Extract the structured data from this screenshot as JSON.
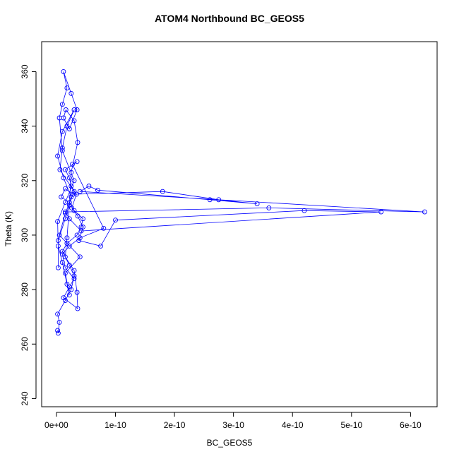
{
  "chart_data": {
    "type": "scatter",
    "title": "ATOM4 Northbound BC_GEOS5",
    "xlabel": "BC_GEOS5",
    "ylabel": "Theta (K)",
    "xlim": [
      -2.5e-11,
      6.45e-10
    ],
    "ylim": [
      237,
      371
    ],
    "x_ticks": [
      0,
      1e-10,
      2e-10,
      3e-10,
      4e-10,
      5e-10,
      6e-10
    ],
    "x_tick_labels": [
      "0e+00",
      "1e-10",
      "2e-10",
      "3e-10",
      "4e-10",
      "5e-10",
      "6e-10"
    ],
    "y_ticks": [
      240,
      260,
      280,
      300,
      320,
      340,
      360
    ],
    "y_tick_labels": [
      "240",
      "260",
      "280",
      "300",
      "320",
      "340",
      "360"
    ],
    "grid": false,
    "marker": "open-circle",
    "connected": true,
    "series_color": "#0000ff",
    "series": [
      {
        "x": [
          2e-12,
          3e-12,
          5e-12,
          2e-12,
          1.5e-11,
          2.5e-11,
          3e-11,
          2.2e-11,
          1e-11,
          1.8e-11,
          3.5e-11,
          4.2e-11,
          4.5e-11,
          3e-11,
          2.2e-11,
          8e-12,
          1.5e-11,
          2.8e-11,
          1.8e-10,
          2.75e-10,
          3.4e-10,
          2.6e-10,
          7e-11,
          5.5e-11,
          4e-11,
          6.24e-10,
          3.6e-10,
          1.5e-11,
          2.2e-11,
          4.2e-11,
          5.5e-10,
          4.2e-10,
          1e-10,
          7.5e-11,
          3.8e-11,
          4.5e-11,
          3.6e-11,
          2.6e-11,
          3.4e-11,
          2.5e-11,
          2.2e-11,
          1.5e-11,
          3.5e-11,
          2.7e-11,
          8e-11,
          4e-11,
          2.2e-11,
          1e-11,
          1.5e-11,
          3e-11,
          2.2e-11,
          1.2e-11,
          3.6e-11,
          3.5e-11,
          3e-11,
          1.5e-11,
          1.8e-11,
          2.2e-11,
          2.5e-11,
          3.6e-11,
          3e-11,
          1.6e-11,
          1.2e-11,
          2.2e-11,
          3.5e-11,
          2.5e-11,
          1.2e-11,
          1.8e-11,
          1e-11,
          5e-12,
          1e-11,
          3e-11,
          1.5e-11,
          2e-12,
          3e-12,
          1e-11,
          1.8e-11,
          2.2e-11,
          1.5e-11,
          4e-11,
          5e-12,
          1.5e-11,
          3e-11,
          6e-12,
          1e-11,
          1.8e-11,
          3e-11,
          1e-11,
          2e-12,
          1.2e-11,
          2.5e-11,
          1.5e-11,
          3e-12,
          3e-12
        ],
        "y": [
          265,
          264,
          268,
          271,
          276,
          280,
          285,
          289,
          294,
          297,
          300,
          303,
          306,
          309,
          312,
          314,
          317,
          315,
          316,
          313,
          311.5,
          313,
          316.5,
          318,
          316,
          308.5,
          310,
          308.5,
          306,
          301.5,
          308.5,
          309,
          305.5,
          296,
          298,
          303,
          307,
          310,
          315,
          318,
          321,
          324,
          327,
          326,
          302.5,
          299,
          296,
          293,
          288,
          284,
          281,
          277,
          273,
          279,
          287,
          292,
          299,
          311,
          323,
          334,
          342,
          346,
          343,
          339,
          346,
          352,
          360,
          354,
          348,
          343,
          331,
          320,
          312,
          305,
          296,
          290,
          282,
          278,
          286,
          292,
          300,
          308,
          316,
          324,
          332,
          340,
          346,
          338,
          329,
          321,
          314,
          306,
          298,
          288
        ]
      }
    ]
  }
}
